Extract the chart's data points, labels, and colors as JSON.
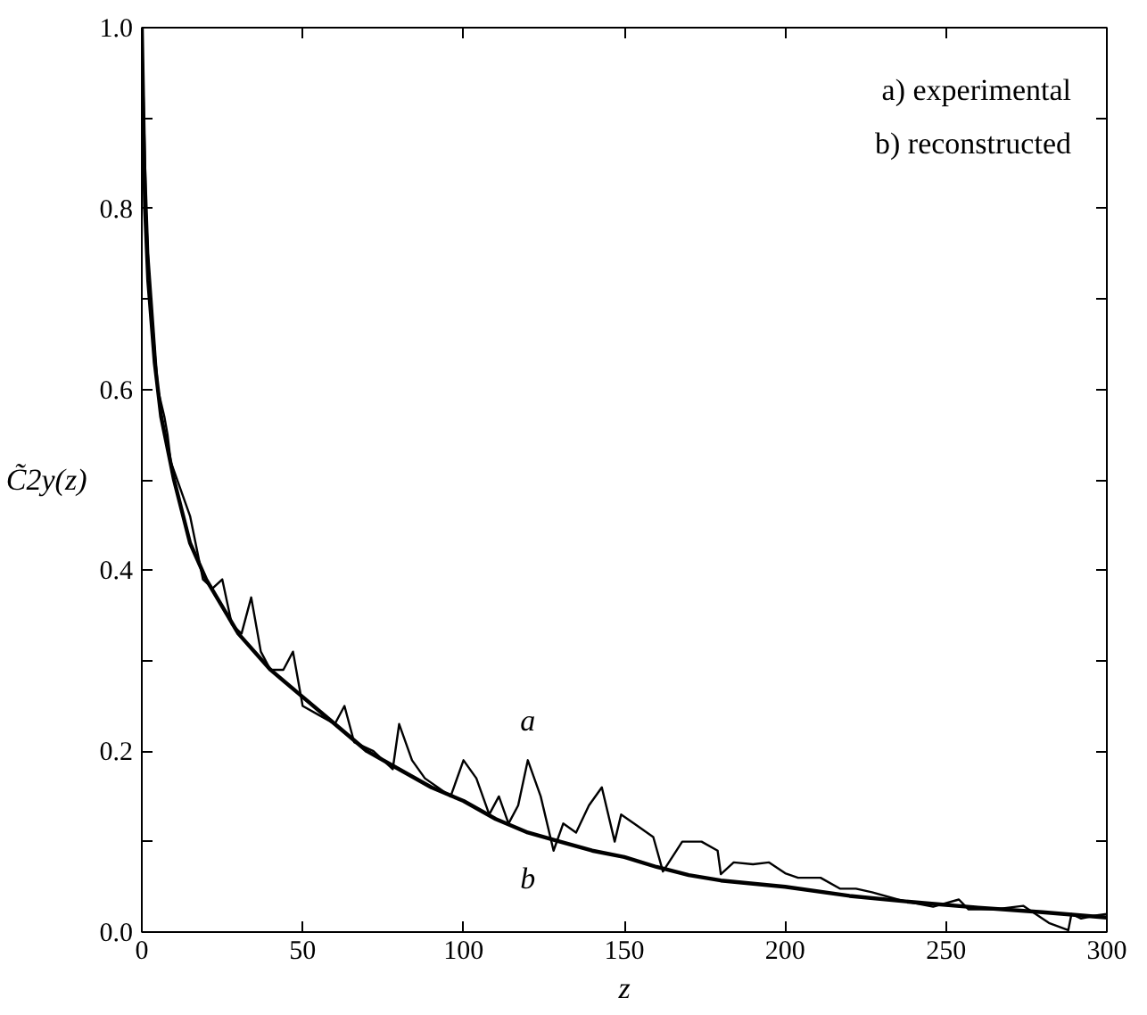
{
  "chart_data": {
    "type": "line",
    "xlabel": "z",
    "ylabel": "C̃2y(z)",
    "annotations": [
      "a) experimental",
      "b) reconstructed"
    ],
    "xlim": [
      0,
      300
    ],
    "ylim": [
      0,
      1.0
    ],
    "xticks": [
      0,
      50,
      100,
      150,
      200,
      250,
      300
    ],
    "yticks": [
      {
        "value": 0.0,
        "label": "0.0"
      },
      {
        "value": 0.1,
        "label": null
      },
      {
        "value": 0.2,
        "label": "0.2"
      },
      {
        "value": 0.3,
        "label": null
      },
      {
        "value": 0.4,
        "label": "0.4"
      },
      {
        "value": 0.5,
        "label": null
      },
      {
        "value": 0.6,
        "label": "0.6"
      },
      {
        "value": 0.7,
        "label": null
      },
      {
        "value": 0.8,
        "label": "0.8"
      },
      {
        "value": 0.9,
        "label": null
      },
      {
        "value": 1.0,
        "label": "1.0"
      }
    ],
    "grid": false,
    "legend": false,
    "marker": "none",
    "line_style": "solid",
    "series": [
      {
        "name": "a",
        "color": "#000000",
        "x": [
          0,
          1,
          2,
          3,
          5,
          7,
          8,
          9,
          12,
          15,
          19,
          22,
          25,
          28,
          31,
          34,
          37,
          40,
          44,
          47,
          50,
          55,
          60,
          63,
          66,
          72,
          78,
          80,
          84,
          88,
          92,
          96,
          100,
          104,
          108,
          111,
          114,
          117,
          120,
          124,
          128,
          131,
          135,
          139,
          143,
          147,
          149,
          153,
          159,
          162,
          168,
          174,
          179,
          180,
          184,
          190,
          195,
          200,
          204,
          211,
          217,
          222,
          227,
          236,
          246,
          254,
          257,
          265,
          274,
          282,
          288,
          289,
          292,
          296,
          300
        ],
        "values": [
          1.0,
          0.85,
          0.75,
          0.7,
          0.6,
          0.57,
          0.55,
          0.52,
          0.49,
          0.46,
          0.39,
          0.38,
          0.39,
          0.34,
          0.33,
          0.37,
          0.31,
          0.29,
          0.29,
          0.31,
          0.25,
          0.24,
          0.23,
          0.25,
          0.21,
          0.2,
          0.18,
          0.23,
          0.19,
          0.17,
          0.16,
          0.15,
          0.19,
          0.17,
          0.13,
          0.15,
          0.12,
          0.14,
          0.19,
          0.15,
          0.09,
          0.12,
          0.11,
          0.14,
          0.16,
          0.1,
          0.13,
          0.12,
          0.105,
          0.067,
          0.1,
          0.1,
          0.09,
          0.064,
          0.077,
          0.075,
          0.077,
          0.065,
          0.06,
          0.06,
          0.048,
          0.048,
          0.044,
          0.035,
          0.028,
          0.036,
          0.025,
          0.025,
          0.029,
          0.01,
          0.002,
          0.02,
          0.015,
          0.018,
          0.02
        ]
      },
      {
        "name": "b",
        "color": "#000000",
        "x": [
          0,
          1,
          2,
          4,
          6,
          10,
          15,
          20,
          30,
          40,
          50,
          60,
          70,
          80,
          90,
          100,
          110,
          120,
          130,
          140,
          150,
          160,
          170,
          180,
          200,
          220,
          240,
          260,
          280,
          300
        ],
        "values": [
          1.0,
          0.8,
          0.72,
          0.63,
          0.57,
          0.5,
          0.43,
          0.39,
          0.33,
          0.29,
          0.26,
          0.23,
          0.2,
          0.18,
          0.16,
          0.145,
          0.125,
          0.11,
          0.1,
          0.09,
          0.083,
          0.072,
          0.063,
          0.057,
          0.05,
          0.04,
          0.033,
          0.027,
          0.022,
          0.016
        ]
      }
    ]
  }
}
